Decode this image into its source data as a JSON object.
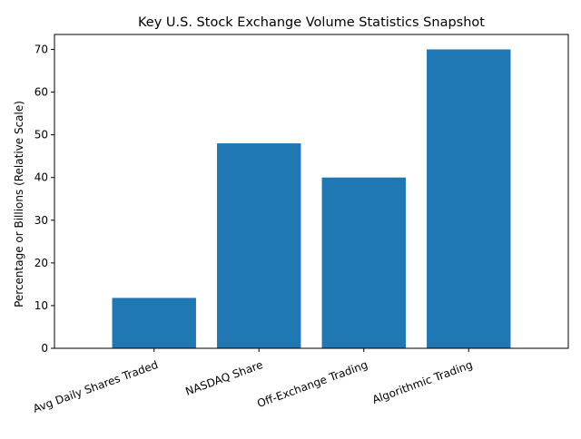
{
  "chart_data": {
    "type": "bar",
    "title": "Key U.S. Stock Exchange Volume Statistics Snapshot",
    "xlabel": "",
    "ylabel": "Percentage or Billions (Relative Scale)",
    "categories": [
      "Avg Daily Shares Traded",
      "NASDAQ Share",
      "Off-Exchange Trading",
      "Algorithmic Trading"
    ],
    "values": [
      11.8,
      48,
      40,
      70
    ],
    "ylim": [
      0,
      73.5
    ],
    "yticks": [
      0,
      10,
      20,
      30,
      40,
      50,
      60,
      70
    ],
    "bar_color": "#1f77b4",
    "grid": false,
    "xtick_rotation": 20
  }
}
